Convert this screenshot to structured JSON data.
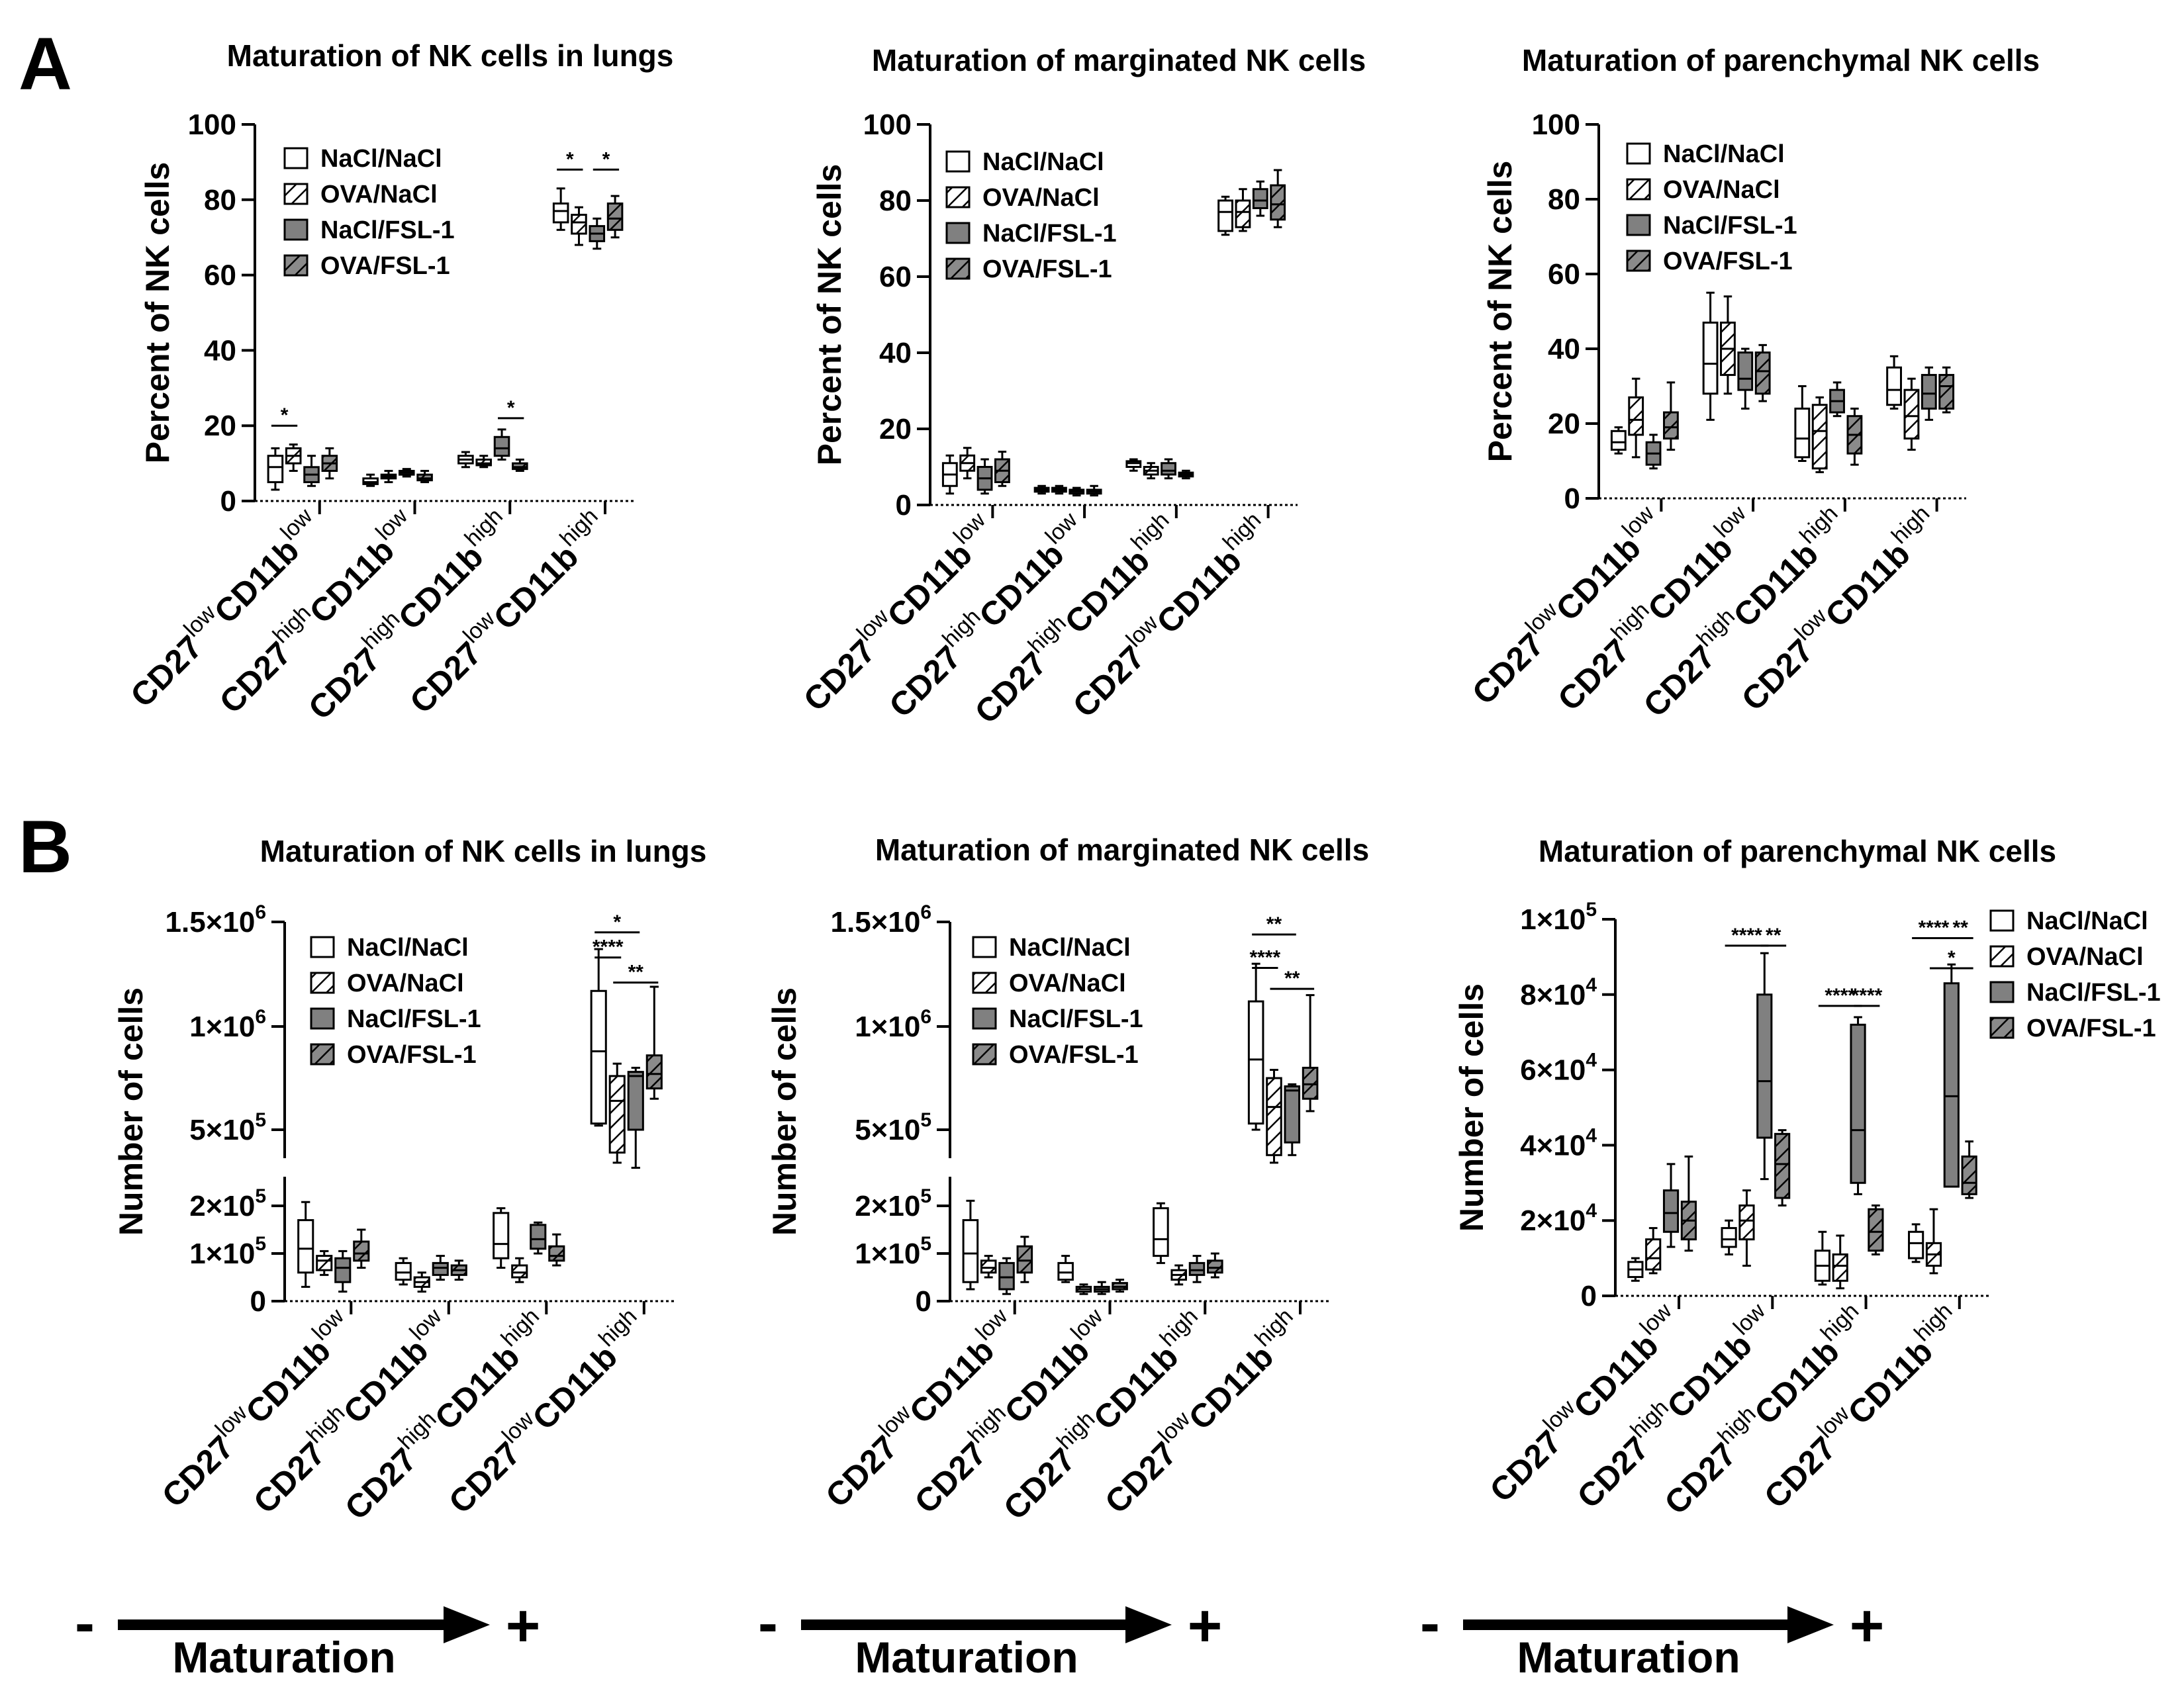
{
  "panel_labels": [
    "A",
    "B"
  ],
  "legend": [
    "NaCl/NaCl",
    "OVA/NaCl",
    "NaCl/FSL-1",
    "OVA/FSL-1"
  ],
  "group_fills": [
    "white",
    "hatch-white",
    "#808080",
    "hatch-gray"
  ],
  "categories": [
    {
      "a": "CD27",
      "as": "low",
      "b": "CD11b",
      "bs": "low"
    },
    {
      "a": "CD27",
      "as": "high",
      "b": "CD11b",
      "bs": "low"
    },
    {
      "a": "CD27",
      "as": "high",
      "b": "CD11b",
      "bs": "high"
    },
    {
      "a": "CD27",
      "as": "low",
      "b": "CD11b",
      "bs": "high"
    }
  ],
  "maturation": {
    "minus": "-",
    "plus": "+",
    "label": "Maturation"
  },
  "chart_data": [
    {
      "id": "A1",
      "type": "box",
      "title": "Maturation of NK cells in lungs",
      "ylabel": "Percent of  NK cells",
      "ylim": [
        0,
        100
      ],
      "yticks": [
        0,
        20,
        40,
        60,
        80,
        100
      ],
      "ytick_labels": [
        "0",
        "20",
        "40",
        "60",
        "80",
        "100"
      ],
      "boxes": [
        [
          [
            3,
            5,
            9,
            12,
            14
          ],
          [
            8,
            10,
            12,
            14,
            15
          ],
          [
            4,
            5,
            7,
            9,
            12
          ],
          [
            6,
            8,
            10,
            12,
            14
          ]
        ],
        [
          [
            4,
            4.5,
            5,
            6,
            7
          ],
          [
            5,
            6,
            6.5,
            7,
            8
          ],
          [
            6.5,
            7,
            7.5,
            8,
            8.5
          ],
          [
            5,
            5.5,
            6,
            7,
            8
          ]
        ],
        [
          [
            9,
            10,
            11,
            12,
            13
          ],
          [
            9,
            9.5,
            10,
            11,
            12
          ],
          [
            11,
            12,
            14,
            17,
            19
          ],
          [
            8,
            8.5,
            9,
            10,
            11
          ]
        ],
        [
          [
            72,
            74,
            77,
            79,
            83
          ],
          [
            68,
            71,
            74,
            76,
            78
          ],
          [
            67,
            69,
            71,
            73,
            75
          ],
          [
            70,
            72,
            75,
            79,
            81
          ]
        ]
      ],
      "significance": [
        {
          "cat": 0,
          "from": 0,
          "to": 1,
          "y": 20,
          "label": "*"
        },
        {
          "cat": 3,
          "from": 0,
          "to": 1,
          "y": 88,
          "label": "*"
        },
        {
          "cat": 3,
          "from": 2,
          "to": 3,
          "y": 88,
          "label": "*"
        },
        {
          "cat": 2,
          "from": 2,
          "to": 3,
          "y": 22,
          "label": "*"
        }
      ]
    },
    {
      "id": "A2",
      "type": "box",
      "title": "Maturation of marginated NK cells",
      "ylabel": "Percent of  NK cells",
      "ylim": [
        0,
        100
      ],
      "yticks": [
        0,
        20,
        40,
        60,
        80,
        100
      ],
      "ytick_labels": [
        "0",
        "20",
        "40",
        "60",
        "80",
        "100"
      ],
      "boxes": [
        [
          [
            3,
            5,
            8,
            11,
            13
          ],
          [
            7,
            9,
            11,
            13,
            15
          ],
          [
            3,
            4,
            7,
            10,
            12
          ],
          [
            5,
            6,
            9,
            12,
            14
          ]
        ],
        [
          [
            3,
            3.5,
            4,
            4.5,
            5
          ],
          [
            3,
            3.5,
            4,
            4.5,
            5
          ],
          [
            2.5,
            3,
            3.5,
            4,
            4.5
          ],
          [
            2.5,
            3,
            3.5,
            4,
            5
          ]
        ],
        [
          [
            9,
            10,
            11,
            11.5,
            12
          ],
          [
            7,
            8,
            9,
            10,
            11
          ],
          [
            7,
            8,
            9,
            11,
            12
          ],
          [
            7,
            7.5,
            8,
            8.5,
            9
          ]
        ],
        [
          [
            71,
            72,
            77,
            80,
            81
          ],
          [
            72,
            73,
            77,
            80,
            83
          ],
          [
            76,
            78,
            80,
            83,
            85
          ],
          [
            73,
            75,
            79,
            84,
            88
          ]
        ]
      ],
      "significance": []
    },
    {
      "id": "A3",
      "type": "box",
      "title": "Maturation of parenchymal NK cells",
      "ylabel": "Percent of  NK cells",
      "ylim": [
        0,
        100
      ],
      "yticks": [
        0,
        20,
        40,
        60,
        80,
        100
      ],
      "ytick_labels": [
        "0",
        "20",
        "40",
        "60",
        "80",
        "100"
      ],
      "boxes": [
        [
          [
            12,
            13,
            15,
            18,
            19
          ],
          [
            11,
            17,
            21,
            27,
            32
          ],
          [
            8,
            9,
            12,
            15,
            17
          ],
          [
            13,
            16,
            19,
            23,
            31
          ]
        ],
        [
          [
            21,
            28,
            36,
            47,
            55
          ],
          [
            28,
            33,
            40,
            47,
            54
          ],
          [
            24,
            29,
            32,
            39,
            40
          ],
          [
            26,
            28,
            34,
            39,
            41
          ]
        ],
        [
          [
            10,
            11,
            16,
            24,
            30
          ],
          [
            7,
            8,
            18,
            25,
            27
          ],
          [
            22,
            23,
            26,
            29,
            31
          ],
          [
            9,
            12,
            17,
            22,
            24
          ]
        ],
        [
          [
            24,
            25,
            29,
            35,
            38
          ],
          [
            13,
            16,
            22,
            29,
            32
          ],
          [
            21,
            24,
            28,
            33,
            35
          ],
          [
            23,
            24,
            30,
            33,
            35
          ]
        ]
      ],
      "significance": []
    },
    {
      "id": "B1",
      "type": "box",
      "title": "Maturation of NK cells in lungs",
      "ylabel": "Number of cells",
      "scale": "broken",
      "yticks": [
        0,
        100000,
        200000,
        500000,
        1000000,
        1500000
      ],
      "ytick_labels": [
        {
          "m": "0",
          "e": ""
        },
        {
          "m": "1×10",
          "e": "5"
        },
        {
          "m": "2×10",
          "e": "5"
        },
        {
          "m": "5×10",
          "e": "5"
        },
        {
          "m": "1×10",
          "e": "6"
        },
        {
          "m": "1.5×10",
          "e": "6"
        }
      ],
      "boxes": [
        [
          [
            30000,
            60000,
            110000,
            170000,
            215000
          ],
          [
            55000,
            65000,
            85000,
            95000,
            105000
          ],
          [
            20000,
            40000,
            70000,
            90000,
            105000
          ],
          [
            70000,
            85000,
            100000,
            125000,
            150000
          ]
        ],
        [
          [
            35000,
            45000,
            60000,
            80000,
            90000
          ],
          [
            20000,
            30000,
            40000,
            50000,
            60000
          ],
          [
            45000,
            55000,
            70000,
            80000,
            95000
          ],
          [
            45000,
            55000,
            65000,
            75000,
            85000
          ]
        ],
        [
          [
            70000,
            90000,
            120000,
            185000,
            195000
          ],
          [
            40000,
            50000,
            60000,
            75000,
            90000
          ],
          [
            100000,
            110000,
            130000,
            160000,
            165000
          ],
          [
            75000,
            85000,
            95000,
            115000,
            140000
          ]
        ],
        [
          [
            520000,
            530000,
            880000,
            1170000,
            1370000
          ],
          [
            370000,
            410000,
            640000,
            760000,
            820000
          ],
          [
            350000,
            500000,
            760000,
            780000,
            800000
          ],
          [
            650000,
            700000,
            770000,
            860000,
            1190000
          ]
        ]
      ],
      "significance": [
        {
          "cat": 3,
          "from": 0,
          "to": 1,
          "y": 1330000,
          "label": "****"
        },
        {
          "cat": 3,
          "from": 0,
          "to": 2,
          "y": 1450000,
          "label": "*"
        },
        {
          "cat": 3,
          "from": 1,
          "to": 3,
          "y": 1210000,
          "label": "**"
        }
      ]
    },
    {
      "id": "B2",
      "type": "box",
      "title": "Maturation of marginated NK cells",
      "ylabel": "Number of cells",
      "scale": "broken",
      "yticks": [
        0,
        100000,
        200000,
        500000,
        1000000,
        1500000
      ],
      "ytick_labels": [
        {
          "m": "0",
          "e": ""
        },
        {
          "m": "1×10",
          "e": "5"
        },
        {
          "m": "2×10",
          "e": "5"
        },
        {
          "m": "5×10",
          "e": "5"
        },
        {
          "m": "1×10",
          "e": "6"
        },
        {
          "m": "1.5×10",
          "e": "6"
        }
      ],
      "boxes": [
        [
          [
            25000,
            40000,
            100000,
            170000,
            220000
          ],
          [
            50000,
            60000,
            70000,
            85000,
            95000
          ],
          [
            15000,
            25000,
            50000,
            80000,
            90000
          ],
          [
            40000,
            60000,
            85000,
            115000,
            135000
          ]
        ],
        [
          [
            40000,
            45000,
            60000,
            80000,
            95000
          ],
          [
            15000,
            20000,
            25000,
            30000,
            35000
          ],
          [
            15000,
            20000,
            25000,
            30000,
            40000
          ],
          [
            20000,
            25000,
            30000,
            38000,
            45000
          ]
        ],
        [
          [
            80000,
            95000,
            130000,
            195000,
            210000
          ],
          [
            35000,
            45000,
            55000,
            65000,
            75000
          ],
          [
            40000,
            55000,
            65000,
            80000,
            95000
          ],
          [
            50000,
            60000,
            70000,
            85000,
            100000
          ]
        ],
        [
          [
            500000,
            530000,
            840000,
            1120000,
            1300000
          ],
          [
            370000,
            400000,
            610000,
            750000,
            790000
          ],
          [
            400000,
            450000,
            690000,
            710000,
            720000
          ],
          [
            590000,
            650000,
            720000,
            800000,
            1150000
          ]
        ]
      ],
      "significance": [
        {
          "cat": 3,
          "from": 0,
          "to": 1,
          "y": 1280000,
          "label": "****"
        },
        {
          "cat": 3,
          "from": 0,
          "to": 2,
          "y": 1440000,
          "label": "**"
        },
        {
          "cat": 3,
          "from": 1,
          "to": 3,
          "y": 1180000,
          "label": "**"
        }
      ]
    },
    {
      "id": "B3",
      "type": "box",
      "title": "Maturation of parenchymal NK cells",
      "ylabel": "Number of cells",
      "ylim": [
        0,
        100000
      ],
      "yticks": [
        0,
        20000,
        40000,
        60000,
        80000,
        100000
      ],
      "ytick_labels": [
        {
          "m": "0",
          "e": ""
        },
        {
          "m": "2×10",
          "e": "4"
        },
        {
          "m": "4×10",
          "e": "4"
        },
        {
          "m": "6×10",
          "e": "4"
        },
        {
          "m": "8×10",
          "e": "4"
        },
        {
          "m": "1×10",
          "e": "5"
        }
      ],
      "boxes": [
        [
          [
            4000,
            5000,
            7000,
            9000,
            10000
          ],
          [
            6000,
            7000,
            10000,
            15000,
            18000
          ],
          [
            13000,
            17000,
            22000,
            28000,
            35000
          ],
          [
            12000,
            15000,
            20000,
            25000,
            37000
          ]
        ],
        [
          [
            11000,
            13000,
            15000,
            18000,
            20000
          ],
          [
            8000,
            15000,
            20000,
            24000,
            28000
          ],
          [
            31000,
            42000,
            57000,
            80000,
            91000
          ],
          [
            24000,
            26000,
            35000,
            43000,
            44000
          ]
        ],
        [
          [
            3000,
            4000,
            8000,
            12000,
            17000
          ],
          [
            2000,
            4000,
            8000,
            11000,
            16000
          ],
          [
            27000,
            30000,
            44000,
            72000,
            74000
          ],
          [
            11000,
            12000,
            17000,
            23000,
            24000
          ]
        ],
        [
          [
            9000,
            10000,
            14000,
            17000,
            19000
          ],
          [
            6000,
            8000,
            11000,
            14000,
            23000
          ],
          [
            29000,
            29000,
            53000,
            83000,
            88000
          ],
          [
            26000,
            27000,
            30000,
            37000,
            41000
          ]
        ]
      ],
      "significance": [
        {
          "cat": 1,
          "from": 0,
          "to": 2,
          "y": 93000,
          "label": "****"
        },
        {
          "cat": 1,
          "from": 2,
          "to": 3,
          "y": 93000,
          "label": "**"
        },
        {
          "cat": 2,
          "from": 0,
          "to": 2,
          "y": 77000,
          "label": "****"
        },
        {
          "cat": 2,
          "from": 2,
          "to": 3,
          "y": 77000,
          "label": "****"
        },
        {
          "cat": 3,
          "from": 0,
          "to": 2,
          "y": 95000,
          "label": "****"
        },
        {
          "cat": 3,
          "from": 2,
          "to": 3,
          "y": 95000,
          "label": "**"
        },
        {
          "cat": 3,
          "from": 1,
          "to": 3,
          "y": 87000,
          "label": "*"
        }
      ]
    }
  ]
}
